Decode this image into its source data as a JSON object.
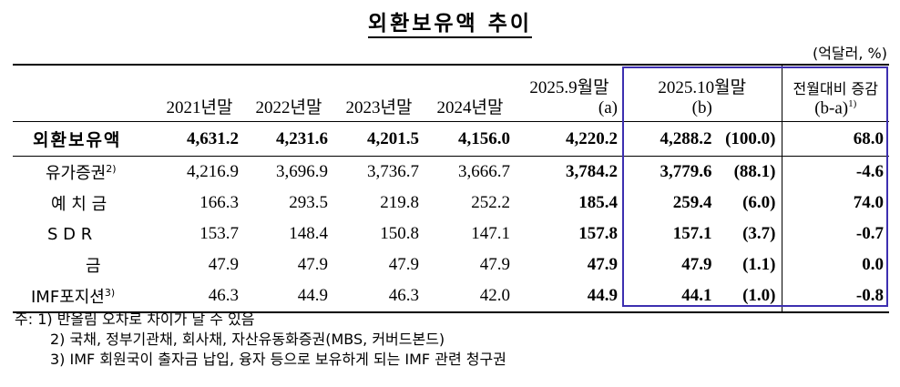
{
  "title": "외환보유액 추이",
  "unit": "(억달러, %)",
  "header": {
    "cols": [
      "2021년말",
      "2022년말",
      "2023년말",
      "2024년말"
    ],
    "sep_line1": "2025.9월말",
    "sep_line2": "(a)",
    "oct_line1": "2025.10월말",
    "oct_line2": "(b)",
    "inc_line1": "전월대비 증감",
    "inc_line2": "(b-a)",
    "inc_sup": "1)"
  },
  "rows": [
    {
      "label": "외환보유액",
      "sup": "",
      "values": [
        "4,631.2",
        "4,231.6",
        "4,201.5",
        "4,156.0"
      ],
      "sep": "4,220.2",
      "oct": "4,288.2",
      "share": "(100.0)",
      "change": "68.0"
    },
    {
      "label": "유가증권",
      "sup": "2)",
      "values": [
        "4,216.9",
        "3,696.9",
        "3,736.7",
        "3,666.7"
      ],
      "sep": "3,784.2",
      "oct": "3,779.6",
      "share": "(88.1)",
      "change": "-4.6"
    },
    {
      "label": "예 치 금",
      "sup": "",
      "values": [
        "166.3",
        "293.5",
        "219.8",
        "252.2"
      ],
      "sep": "185.4",
      "oct": "259.4",
      "share": "(6.0)",
      "change": "74.0"
    },
    {
      "label": "S D R",
      "sup": "",
      "values": [
        "153.7",
        "148.4",
        "150.8",
        "147.1"
      ],
      "sep": "157.8",
      "oct": "157.1",
      "share": "(3.7)",
      "change": "-0.7"
    },
    {
      "label": "금",
      "sup": "",
      "values": [
        "47.9",
        "47.9",
        "47.9",
        "47.9"
      ],
      "sep": "47.9",
      "oct": "47.9",
      "share": "(1.1)",
      "change": "0.0"
    },
    {
      "label": "IMF포지션",
      "sup": "3)",
      "values": [
        "46.3",
        "44.9",
        "46.3",
        "42.0"
      ],
      "sep": "44.9",
      "oct": "44.1",
      "share": "(1.0)",
      "change": "-0.8"
    }
  ],
  "notes": [
    "주: 1) 반올림 오차로 차이가 날 수 있음",
    "2) 국채, 정부기관채, 회사채, 자산유동화증권(MBS, 커버드본드)",
    "3) IMF 회원국이 출자금 납입, 융자 등으로 보유하게 되는 IMF 관련 청구권"
  ],
  "colors": {
    "highlight_border": "#3d2fb0"
  }
}
